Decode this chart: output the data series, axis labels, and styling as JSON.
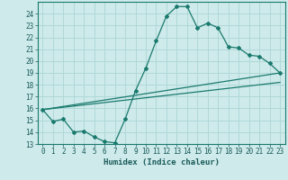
{
  "title": "",
  "xlabel": "Humidex (Indice chaleur)",
  "ylabel": "",
  "background_color": "#ceeaea",
  "grid_color": "#b0d8d8",
  "line_color": "#1a7a6e",
  "xlim": [
    -0.5,
    23.5
  ],
  "ylim": [
    13,
    25
  ],
  "xticks": [
    0,
    1,
    2,
    3,
    4,
    5,
    6,
    7,
    8,
    9,
    10,
    11,
    12,
    13,
    14,
    15,
    16,
    17,
    18,
    19,
    20,
    21,
    22,
    23
  ],
  "yticks": [
    13,
    14,
    15,
    16,
    17,
    18,
    19,
    20,
    21,
    22,
    23,
    24
  ],
  "curve1_x": [
    0,
    1,
    2,
    3,
    4,
    5,
    6,
    7,
    8,
    9,
    10,
    11,
    12,
    13,
    14,
    15,
    16,
    17,
    18,
    19,
    20,
    21,
    22,
    23
  ],
  "curve1_y": [
    15.9,
    14.9,
    15.1,
    14.0,
    14.1,
    13.6,
    13.2,
    13.1,
    15.1,
    17.5,
    19.4,
    21.7,
    23.8,
    24.6,
    24.6,
    22.8,
    23.2,
    22.8,
    21.2,
    21.1,
    20.5,
    20.4,
    19.8,
    19.0
  ],
  "curve2_x": [
    0,
    23
  ],
  "curve2_y": [
    15.9,
    19.0
  ],
  "curve3_x": [
    0,
    23
  ],
  "curve3_y": [
    15.9,
    18.2
  ]
}
